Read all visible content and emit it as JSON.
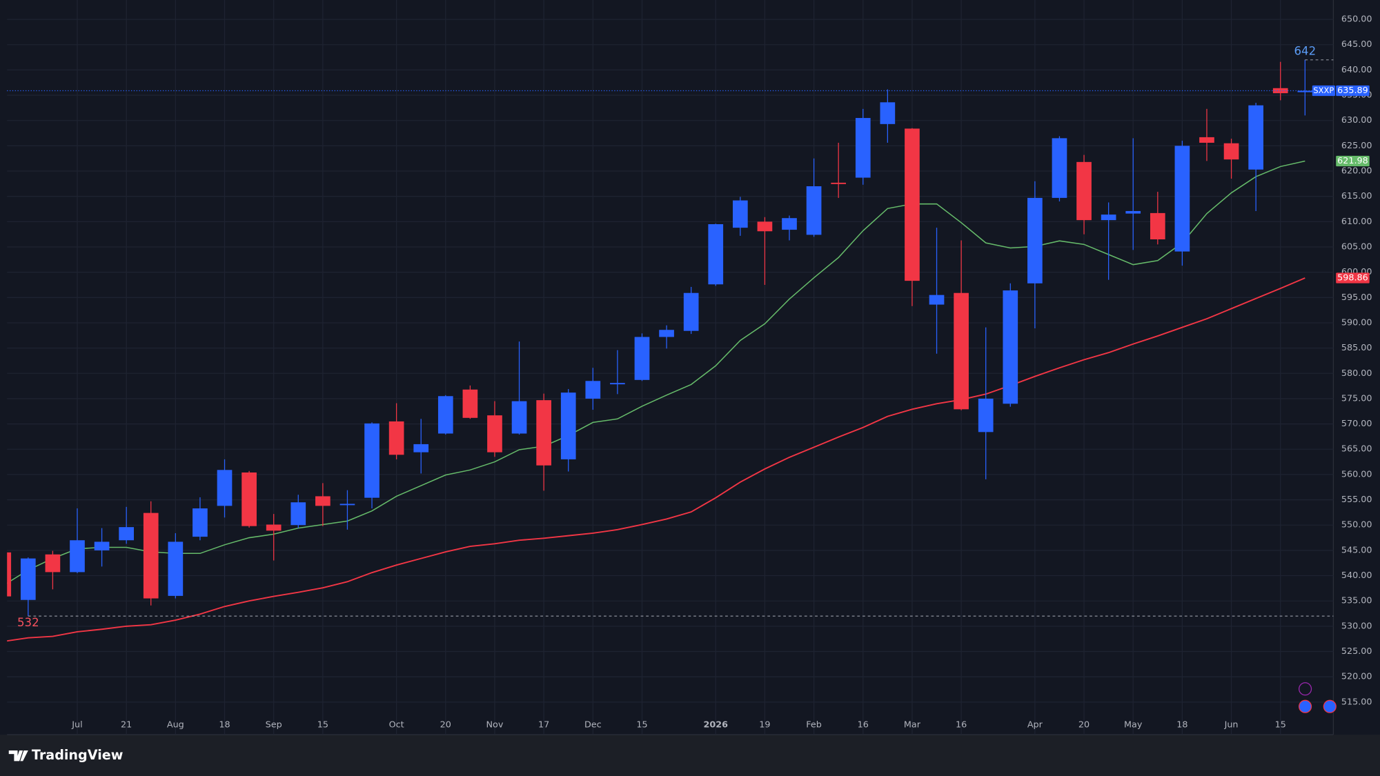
{
  "chart_data": {
    "type": "candlestick",
    "up_color": "#2962ff",
    "down_color": "#f23645",
    "ticker": "SXXP",
    "categories": [
      null,
      null,
      null,
      "Jul",
      null,
      "21",
      null,
      "Aug",
      null,
      "18",
      null,
      "Sep",
      null,
      "15",
      null,
      null,
      "Oct",
      null,
      "20",
      null,
      "Nov",
      null,
      "17",
      null,
      "Dec",
      null,
      "15",
      null,
      null,
      "2026",
      null,
      "19",
      null,
      "Feb",
      null,
      "16",
      null,
      "Mar",
      null,
      "16",
      null,
      null,
      "Apr",
      null,
      "20",
      null,
      "May",
      null,
      "18",
      null,
      "Jun",
      null,
      "15",
      null
    ],
    "open": [
      544.6,
      535.2,
      544.2,
      540.7,
      545,
      547,
      552.4,
      536,
      547.7,
      553.8,
      560.4,
      550.1,
      550,
      555.7,
      554,
      555.4,
      570.5,
      564.4,
      568.1,
      576.8,
      571.7,
      568.1,
      574.7,
      563,
      575,
      577.9,
      578.7,
      587.2,
      588.4,
      597.6,
      608.8,
      610,
      608.4,
      607.4,
      617.7,
      618.7,
      629.3,
      628.4,
      593.6,
      595.9,
      568.4,
      574,
      597.8,
      614.7,
      621.8,
      610.3,
      611.6,
      611.7,
      604.1,
      626.7,
      625.5,
      620.3,
      636.4,
      635.6
    ],
    "high": [
      546,
      543.6,
      544.9,
      553.3,
      549.4,
      553.6,
      554.7,
      548.4,
      555.5,
      563,
      560.7,
      552.2,
      556,
      558.3,
      556.9,
      570.3,
      574.1,
      571,
      575.7,
      577.6,
      574.5,
      586.3,
      576,
      576.9,
      581.1,
      584.6,
      587.9,
      589.5,
      597.1,
      609.6,
      614.9,
      610.9,
      611.2,
      622.5,
      625.6,
      632.3,
      636.16,
      628.5,
      608.8,
      606.3,
      589.1,
      597.8,
      618,
      626.9,
      623.2,
      613.8,
      626.5,
      615.9,
      626,
      632.3,
      626.4,
      633.5,
      641.6,
      642
    ],
    "low": [
      535,
      532,
      537.3,
      540.5,
      541.8,
      546.3,
      534.1,
      535.5,
      547,
      551.5,
      549.5,
      543,
      549.4,
      549.8,
      549.1,
      553.3,
      563,
      560.2,
      567.9,
      571,
      563.5,
      567.9,
      556.8,
      560.6,
      572.8,
      575.9,
      578.5,
      584.9,
      587.8,
      597.3,
      607.2,
      597.5,
      606.3,
      607,
      614.7,
      617.3,
      625.6,
      593.3,
      583.9,
      572.7,
      559.05,
      573.4,
      588.9,
      614,
      607.5,
      598.5,
      604.4,
      605.5,
      601.3,
      622,
      618.5,
      612.1,
      634,
      631
    ],
    "close": [
      535.9,
      543.4,
      540.7,
      547,
      546.7,
      549.6,
      535.5,
      546.7,
      553.3,
      560.9,
      549.8,
      548.9,
      554.5,
      553.8,
      554.2,
      570.1,
      563.9,
      566,
      575.5,
      571.2,
      564.4,
      574.5,
      561.8,
      576.2,
      578.5,
      578.1,
      587.2,
      588.6,
      595.9,
      609.5,
      614.2,
      608.1,
      610.7,
      617,
      617.5,
      630.5,
      633.6,
      598.3,
      595.5,
      572.9,
      575,
      596.4,
      614.7,
      626.5,
      610.3,
      611.4,
      612.1,
      606.5,
      625,
      625.6,
      622.3,
      633,
      635.4,
      635.89
    ],
    "lines": [
      {
        "color": "#66bb6a",
        "values": [
          538.1,
          541.1,
          543.4,
          545.3,
          545.6,
          545.6,
          544.7,
          544.4,
          544.4,
          546.1,
          547.5,
          548.2,
          549.4,
          550.1,
          550.8,
          552.8,
          555.7,
          557.8,
          559.9,
          560.9,
          562.5,
          564.9,
          565.6,
          567.7,
          570.3,
          571,
          573.5,
          575.7,
          577.8,
          581.5,
          586.5,
          589.8,
          594.7,
          598.9,
          602.9,
          608.2,
          612.6,
          613.5,
          613.5,
          609.8,
          605.8,
          604.8,
          605.1,
          606.2,
          605.5,
          603.5,
          601.5,
          602.3,
          605.8,
          611.6,
          615.7,
          618.9,
          620.9,
          621.98
        ]
      },
      {
        "color": "#f23645",
        "values": [
          527,
          527.7,
          528,
          528.9,
          529.4,
          530,
          530.3,
          531.2,
          532.4,
          533.9,
          535,
          535.9,
          536.7,
          537.6,
          538.8,
          540.6,
          542.1,
          543.4,
          544.7,
          545.8,
          546.3,
          547,
          547.4,
          547.9,
          548.4,
          549.1,
          550.1,
          551.2,
          552.6,
          555.4,
          558.5,
          561.1,
          563.4,
          565.4,
          567.4,
          569.3,
          571.5,
          572.9,
          574,
          574.8,
          575.9,
          577.6,
          579.4,
          581.1,
          582.7,
          584.1,
          585.8,
          587.4,
          589.1,
          590.8,
          592.8,
          594.8,
          596.8,
          598.86
        ]
      }
    ],
    "ylim": [
      508.56,
      653.83
    ],
    "yticks": [
      {
        "value": 515,
        "label": "515.00"
      },
      {
        "value": 520,
        "label": "520.00"
      },
      {
        "value": 525,
        "label": "525.00"
      },
      {
        "value": 530,
        "label": "530.00"
      },
      {
        "value": 535,
        "label": "535.00"
      },
      {
        "value": 540,
        "label": "540.00"
      },
      {
        "value": 545,
        "label": "545.00"
      },
      {
        "value": 550,
        "label": "550.00"
      },
      {
        "value": 555,
        "label": "555.00"
      },
      {
        "value": 560,
        "label": "560.00"
      },
      {
        "value": 565,
        "label": "565.00"
      },
      {
        "value": 570,
        "label": "570.00"
      },
      {
        "value": 575,
        "label": "575.00"
      },
      {
        "value": 580,
        "label": "580.00"
      },
      {
        "value": 585,
        "label": "585.00"
      },
      {
        "value": 590,
        "label": "590.00"
      },
      {
        "value": 595,
        "label": "595.00"
      },
      {
        "value": 600,
        "label": "600.00"
      },
      {
        "value": 605,
        "label": "605.00"
      },
      {
        "value": 610,
        "label": "610.00"
      },
      {
        "value": 615,
        "label": "615.00"
      },
      {
        "value": 620,
        "label": "620.00"
      },
      {
        "value": 625,
        "label": "625.00"
      },
      {
        "value": 630,
        "label": "630.00"
      },
      {
        "value": 635,
        "label": "635.00"
      },
      {
        "value": 640,
        "label": "640.00"
      },
      {
        "value": 645,
        "label": "645.00"
      },
      {
        "value": 650,
        "label": "650.00"
      }
    ],
    "grid": true
  },
  "footer": {
    "brand": "TradingView"
  }
}
